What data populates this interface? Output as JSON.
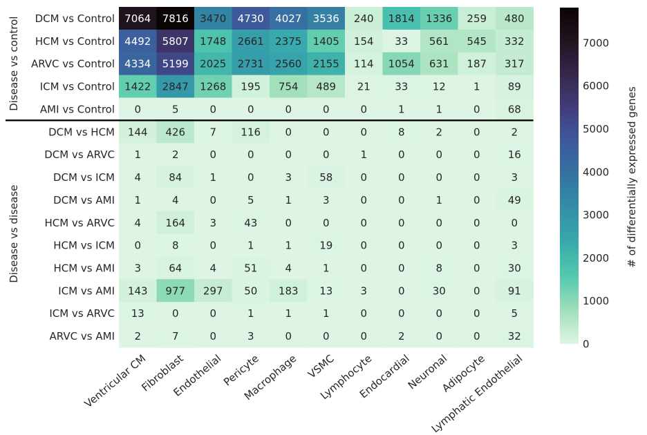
{
  "chart_data": {
    "type": "heatmap",
    "columns": [
      "Ventricular CM",
      "Fibroblast",
      "Endothelial",
      "Pericyte",
      "Macrophage",
      "VSMC",
      "Lymphocyte",
      "Endocardial",
      "Neuronal",
      "Adipocyte",
      "Lymphatic Endothelial"
    ],
    "row_groups": [
      {
        "label": "Disease vs control",
        "rows": [
          "DCM vs Control",
          "HCM vs Control",
          "ARVC vs Control",
          "ICM vs Control",
          "AMI vs Control"
        ]
      },
      {
        "label": "Disease vs disease",
        "rows": [
          "DCM vs HCM",
          "DCM vs ARVC",
          "DCM vs ICM",
          "DCM vs AMI",
          "HCM vs ARVC",
          "HCM vs ICM",
          "HCM vs AMI",
          "ICM vs AMI",
          "ICM vs ARVC",
          "ARVC vs AMI"
        ]
      }
    ],
    "values": [
      [
        7064,
        7816,
        3470,
        4730,
        4027,
        3536,
        240,
        1814,
        1336,
        259,
        480
      ],
      [
        4492,
        5807,
        1748,
        2661,
        2375,
        1405,
        154,
        33,
        561,
        545,
        332
      ],
      [
        4334,
        5199,
        2025,
        2731,
        2560,
        2155,
        114,
        1054,
        631,
        187,
        317
      ],
      [
        1422,
        2847,
        1268,
        195,
        754,
        489,
        21,
        33,
        12,
        1,
        89
      ],
      [
        0,
        5,
        0,
        0,
        0,
        0,
        0,
        1,
        1,
        0,
        68
      ],
      [
        144,
        426,
        7,
        116,
        0,
        0,
        0,
        8,
        2,
        0,
        2
      ],
      [
        1,
        2,
        0,
        0,
        0,
        0,
        1,
        0,
        0,
        0,
        16
      ],
      [
        4,
        84,
        1,
        0,
        3,
        58,
        0,
        0,
        0,
        0,
        3
      ],
      [
        1,
        4,
        0,
        5,
        1,
        3,
        0,
        0,
        1,
        0,
        49
      ],
      [
        4,
        164,
        3,
        43,
        0,
        0,
        0,
        0,
        0,
        0,
        0
      ],
      [
        0,
        8,
        0,
        1,
        1,
        19,
        0,
        0,
        0,
        0,
        3
      ],
      [
        3,
        64,
        4,
        51,
        4,
        1,
        0,
        0,
        8,
        0,
        30
      ],
      [
        143,
        977,
        297,
        50,
        183,
        13,
        3,
        0,
        30,
        0,
        91
      ],
      [
        13,
        0,
        0,
        1,
        1,
        1,
        0,
        0,
        0,
        0,
        5
      ],
      [
        2,
        7,
        0,
        3,
        0,
        0,
        0,
        2,
        0,
        0,
        32
      ]
    ],
    "colorbar": {
      "label": "# of differentially expressed genes",
      "range": [
        0,
        7816
      ],
      "ticks": [
        0,
        1000,
        2000,
        3000,
        4000,
        5000,
        6000,
        7000
      ],
      "colormap": "mako_r",
      "color_stops": [
        "#def5e5",
        "#a0dfb9",
        "#54c9ad",
        "#38aaac",
        "#348fa7",
        "#3573a1",
        "#3e5a9c",
        "#413d7b",
        "#37274d",
        "#20141f",
        "#0b0405"
      ]
    },
    "separator_after_row": 5
  }
}
